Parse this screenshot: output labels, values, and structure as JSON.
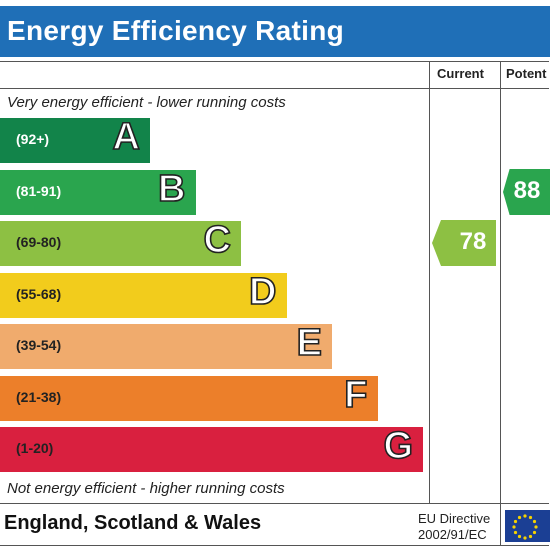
{
  "title": "Energy Efficiency Rating",
  "columns": {
    "current": "Current",
    "potential": "Potent"
  },
  "top_note": "Very energy efficient - lower running costs",
  "bottom_note": "Not energy efficient - higher running costs",
  "footer": {
    "region": "England, Scotland & Wales",
    "directive_line1": "EU Directive",
    "directive_line2": "2002/91/EC"
  },
  "colors": {
    "title_bg": "#1f6fb7"
  },
  "chart_data": {
    "type": "bar",
    "bands": [
      {
        "range": "(92+)",
        "letter": "A",
        "color": "#12844a",
        "range_color": "#ffffff"
      },
      {
        "range": "(81-91)",
        "letter": "B",
        "color": "#2aa54e",
        "range_color": "#ffffff"
      },
      {
        "range": "(69-80)",
        "letter": "C",
        "color": "#8dc043",
        "range_color": "#222222"
      },
      {
        "range": "(55-68)",
        "letter": "D",
        "color": "#f2cc1c",
        "range_color": "#222222"
      },
      {
        "range": "(39-54)",
        "letter": "E",
        "color": "#f0ab6d",
        "range_color": "#222222"
      },
      {
        "range": "(21-38)",
        "letter": "F",
        "color": "#ec7f2a",
        "range_color": "#222222"
      },
      {
        "range": "(1-20)",
        "letter": "G",
        "color": "#d9203f",
        "range_color": "#222222"
      }
    ],
    "current": {
      "value": 78,
      "label": "78",
      "band": "C",
      "color": "#8dc043"
    },
    "potential": {
      "value": 88,
      "label": "88",
      "band": "B",
      "color": "#2aa54e"
    }
  }
}
